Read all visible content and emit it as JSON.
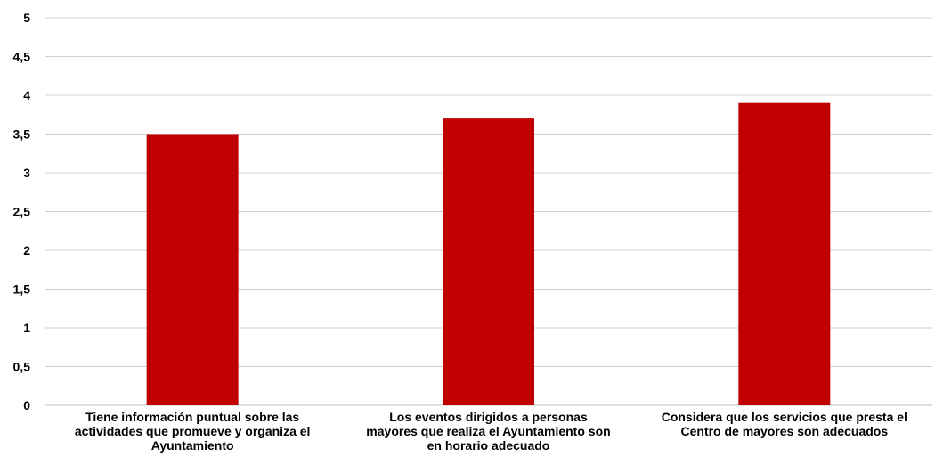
{
  "chart_data": {
    "type": "bar",
    "categories": [
      [
        "Tiene información puntual sobre las",
        "actividades que promueve y organiza el",
        "Ayuntamiento"
      ],
      [
        "Los eventos dirigidos a personas",
        "mayores que realiza el Ayuntamiento son",
        "en horario adecuado"
      ],
      [
        "Considera que los servicios que presta el",
        "Centro de mayores son adecuados"
      ]
    ],
    "values": [
      3.5,
      3.7,
      3.9
    ],
    "ylim": [
      0,
      5
    ],
    "yticks": [
      "0",
      "0,5",
      "1",
      "1,5",
      "2",
      "2,5",
      "3",
      "3,5",
      "4",
      "4,5",
      "5"
    ],
    "ytick_values": [
      0,
      0.5,
      1,
      1.5,
      2,
      2.5,
      3,
      3.5,
      4,
      4.5,
      5
    ],
    "grid": true,
    "bar_color": "#c00000"
  }
}
